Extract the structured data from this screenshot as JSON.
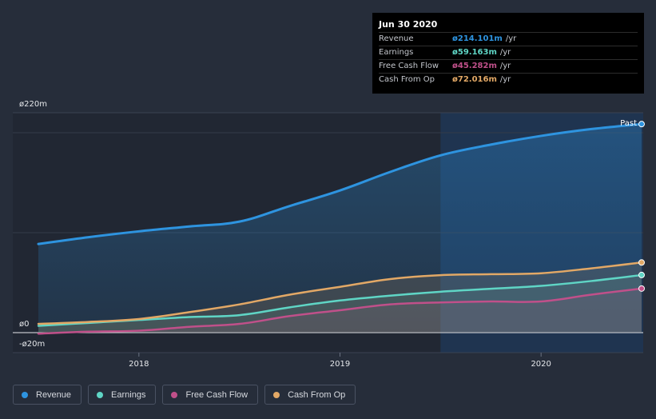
{
  "chart_data": {
    "type": "line",
    "x": [
      2017.5,
      2017.75,
      2018.0,
      2018.25,
      2018.5,
      2018.75,
      2019.0,
      2019.25,
      2019.5,
      2019.75,
      2020.0,
      2020.25,
      2020.5
    ],
    "series": [
      {
        "name": "Revenue",
        "color": "#2e94e0",
        "values": [
          91,
          98,
          104,
          109,
          114,
          130,
          146,
          165,
          182,
          193,
          202,
          209,
          214.101
        ]
      },
      {
        "name": "Earnings",
        "color": "#5fd5c5",
        "values": [
          7,
          10,
          13,
          16,
          18,
          26,
          33,
          38,
          42,
          45,
          48,
          53,
          59.163
        ]
      },
      {
        "name": "Free Cash Flow",
        "color": "#c0508a",
        "values": [
          -1,
          1,
          2,
          6,
          9,
          17,
          23,
          29,
          31,
          32,
          32,
          39,
          45.282
        ]
      },
      {
        "name": "Cash From Op",
        "color": "#e2a866",
        "values": [
          9,
          11,
          14,
          21,
          29,
          39,
          47,
          55,
          59,
          60,
          61,
          66,
          72.016
        ]
      }
    ],
    "ylim": [
      -20,
      220
    ],
    "y_tick_labels": [
      {
        "value": 220,
        "label": "ø220m"
      },
      {
        "value": 0,
        "label": "ø0"
      },
      {
        "value": -20,
        "label": "-ø20m"
      }
    ],
    "x_ticks": [
      {
        "value": 2018,
        "label": "2018"
      },
      {
        "value": 2019,
        "label": "2019"
      },
      {
        "value": 2020,
        "label": "2020"
      }
    ],
    "past_start": 2019.5,
    "past_label": "Past",
    "legend_position": "bottom-left"
  },
  "tooltip": {
    "date": "Jun 30 2020",
    "rows": [
      {
        "label": "Revenue",
        "value": "ø214.101m",
        "unit": "/yr",
        "color": "#2e94e0"
      },
      {
        "label": "Earnings",
        "value": "ø59.163m",
        "unit": "/yr",
        "color": "#5fd5c5"
      },
      {
        "label": "Free Cash Flow",
        "value": "ø45.282m",
        "unit": "/yr",
        "color": "#c0508a"
      },
      {
        "label": "Cash From Op",
        "value": "ø72.016m",
        "unit": "/yr",
        "color": "#e2a866"
      }
    ]
  },
  "legend": [
    {
      "label": "Revenue",
      "color": "#2e94e0"
    },
    {
      "label": "Earnings",
      "color": "#5fd5c5"
    },
    {
      "label": "Free Cash Flow",
      "color": "#c0508a"
    },
    {
      "label": "Cash From Op",
      "color": "#e2a866"
    }
  ]
}
